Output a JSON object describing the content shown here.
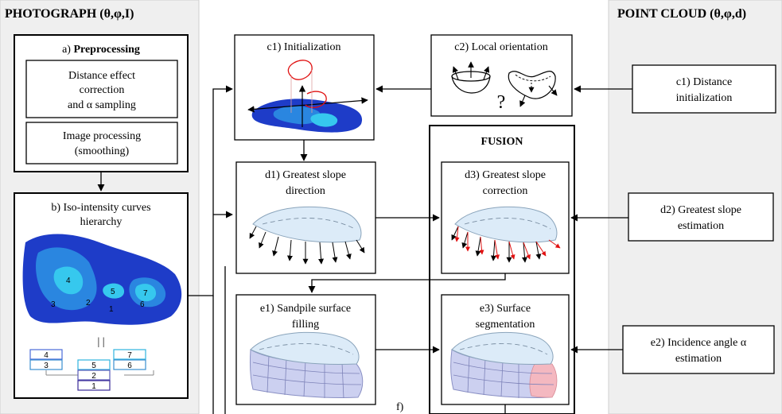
{
  "headers": {
    "photograph": "PHOTOGRAPH (θ,φ,I)",
    "point_cloud": "POINT CLOUD (θ,φ,d)"
  },
  "preprocessing": {
    "prefix": "a) ",
    "title": "Preprocessing",
    "distance_box": [
      "Distance effect",
      "correction",
      "and α sampling"
    ],
    "image_box": [
      "Image processing",
      "(smoothing)"
    ]
  },
  "iso_curves": {
    "title": [
      "b) Iso-intensity curves",
      "hierarchy"
    ],
    "region_labels": [
      "4",
      "3",
      "2",
      "5",
      "1",
      "7",
      "6"
    ],
    "separator": "| |",
    "hierarchy": [
      "4",
      "7",
      "3",
      "5",
      "6",
      "2",
      "1"
    ]
  },
  "steps": {
    "c1_init": "c1) Initialization",
    "c2_orientation": "c2) Local orientation",
    "question_mark": "?",
    "c1_distance": [
      "c1) Distance",
      "initialization"
    ],
    "fusion": "FUSION",
    "d1": [
      "d1) Greatest slope",
      "direction"
    ],
    "d3": [
      "d3) Greatest slope",
      "correction"
    ],
    "d2": [
      "d2) Greatest slope",
      "estimation"
    ],
    "e1": [
      "e1) Sandpile surface",
      "filling"
    ],
    "e3": [
      "e3) Surface",
      "segmentation"
    ],
    "e2": [
      "e2) Incidence angle α",
      "estimation"
    ],
    "f": "f)"
  },
  "colors": {
    "iso_dark": "#1e3cc8",
    "iso_mid": "#2a86e0",
    "iso_light": "#36c8ee",
    "shell": "#dcebf8",
    "lower": "#ccd0f0",
    "red": "#e01010",
    "column_bg": "#efefef"
  }
}
